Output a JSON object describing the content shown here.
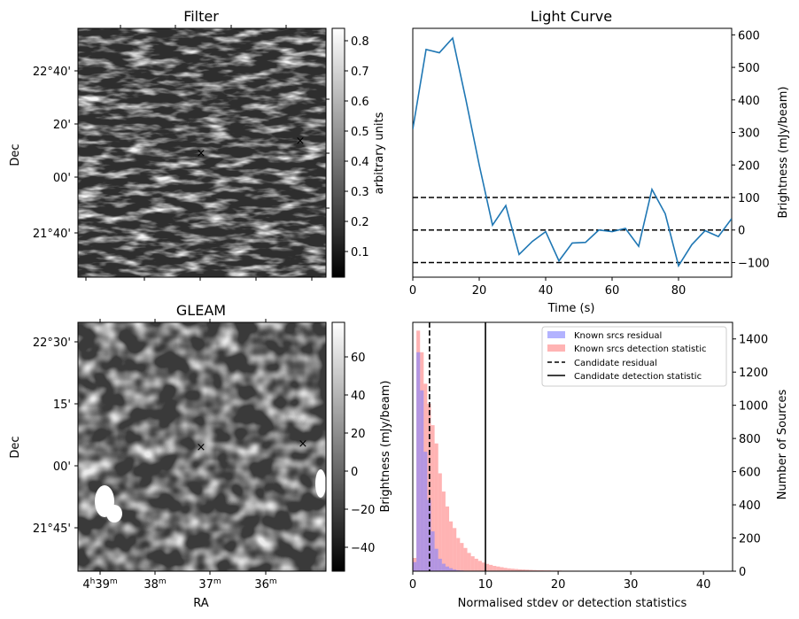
{
  "colors": {
    "line": "#1f77b4",
    "residual_hist": "#8080ff",
    "detection_hist": "#ff8080",
    "red_marker": "#d62728",
    "blue_marker": "#0000cc"
  },
  "chart_data": [
    {
      "type": "heatmap",
      "title": "Filter",
      "ylabel": "Dec",
      "yticks": [
        "22°40'",
        "20'",
        "00'",
        "21°40'"
      ],
      "colorbar": {
        "label": "arbitrary units",
        "ticks": [
          "0.1",
          "0.2",
          "0.3",
          "0.4",
          "0.5",
          "0.6",
          "0.7",
          "0.8"
        ],
        "range": [
          0.02,
          0.84
        ]
      },
      "markers": [
        {
          "symbol": "x",
          "color": "red"
        },
        {
          "symbol": "x",
          "color": "blue"
        }
      ]
    },
    {
      "type": "line",
      "title": "Light Curve",
      "xlabel": "Time (s)",
      "ylabel": "Brightness (mJy/beam)",
      "xlim": [
        0,
        96
      ],
      "ylim": [
        -145,
        620
      ],
      "xticks": [
        0,
        20,
        40,
        60,
        80
      ],
      "yticks": [
        -100,
        0,
        100,
        200,
        300,
        400,
        500,
        600
      ],
      "x": [
        0,
        4,
        8,
        12,
        16,
        20,
        24,
        28,
        32,
        36,
        40,
        44,
        48,
        52,
        56,
        60,
        64,
        68,
        72,
        76,
        80,
        84,
        88,
        92,
        96
      ],
      "y": [
        310,
        555,
        545,
        590,
        400,
        200,
        15,
        75,
        -75,
        -35,
        -5,
        -95,
        -40,
        -38,
        0,
        -5,
        5,
        -50,
        125,
        50,
        -110,
        -45,
        -2,
        -20,
        35
      ],
      "hlines": [
        100,
        0,
        -100
      ]
    },
    {
      "type": "heatmap",
      "title": "GLEAM",
      "xlabel": "RA",
      "ylabel": "Dec",
      "xticks": [
        "4h39m",
        "38m",
        "37m",
        "36m"
      ],
      "yticks": [
        "22°30'",
        "15'",
        "00'",
        "21°45'"
      ],
      "colorbar": {
        "label": "Brightness (mJy/beam)",
        "ticks": [
          "60",
          "40",
          "20",
          "0",
          "−20",
          "−40"
        ],
        "range": [
          -53,
          76
        ]
      },
      "markers": [
        {
          "symbol": "x",
          "color": "red"
        },
        {
          "symbol": "x",
          "color": "blue"
        }
      ]
    },
    {
      "type": "bar",
      "xlabel": "Normalised stdev or detection statistics",
      "ylabel": "Number of Sources",
      "xlim": [
        0,
        44
      ],
      "ylim": [
        0,
        1500
      ],
      "xticks": [
        0,
        10,
        20,
        30,
        40
      ],
      "yticks": [
        0,
        200,
        400,
        600,
        800,
        1000,
        1200,
        1400
      ],
      "bin_width": 0.5,
      "series": [
        {
          "name": "Known srcs residual",
          "values": [
            55,
            1320,
            1090,
            720,
            430,
            240,
            135,
            75,
            45,
            28,
            18,
            10,
            6,
            4,
            2
          ]
        },
        {
          "name": "Known srcs detection statistic",
          "values": [
            80,
            1450,
            1320,
            1130,
            1010,
            880,
            770,
            590,
            480,
            390,
            300,
            260,
            200,
            170,
            140,
            110,
            90,
            75,
            62,
            52,
            44,
            38,
            32,
            28,
            24,
            20,
            17,
            15,
            13,
            11,
            10,
            9,
            8,
            7,
            6,
            6,
            5,
            5,
            4,
            4,
            4,
            3,
            3,
            3,
            3,
            3,
            2,
            2,
            2,
            2,
            2,
            2,
            2,
            2,
            2,
            2,
            2,
            2,
            2,
            2,
            2,
            2,
            2,
            2,
            2,
            2,
            2,
            2,
            2,
            2,
            2,
            2,
            2,
            2,
            2,
            2,
            2,
            2,
            2,
            2,
            2,
            2,
            2,
            2
          ]
        }
      ],
      "vlines": [
        {
          "name": "Candidate residual",
          "x": 2.3,
          "style": "dashed"
        },
        {
          "name": "Candidate detection statistic",
          "x": 10.0,
          "style": "solid"
        }
      ],
      "legend": {
        "placement": "top-right",
        "entries": [
          "Known srcs residual",
          "Known srcs detection statistic",
          "Candidate residual",
          "Candidate detection statistic"
        ]
      }
    }
  ]
}
